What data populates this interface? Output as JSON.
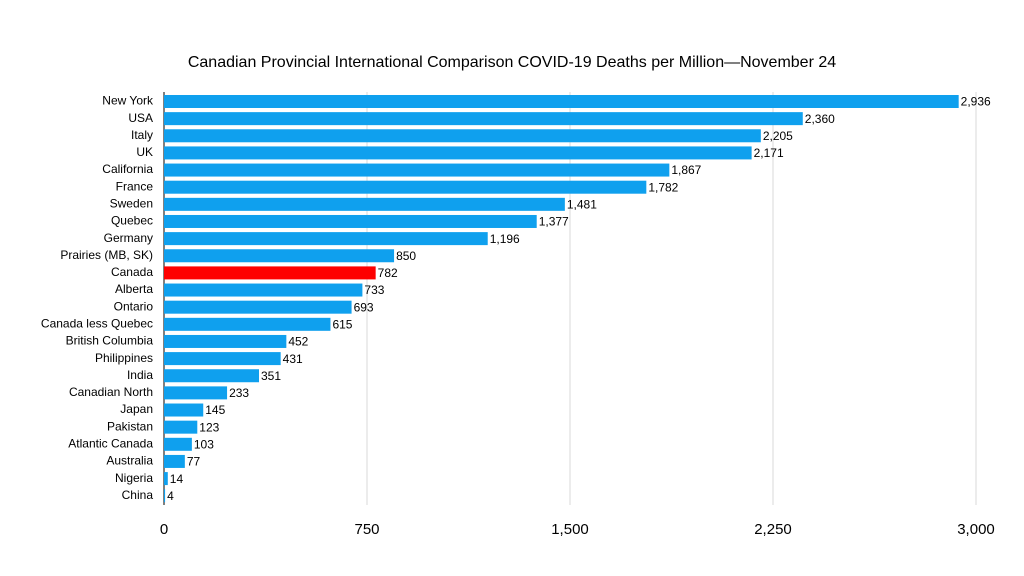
{
  "chart_data": {
    "type": "bar",
    "orientation": "horizontal",
    "title": "Canadian Provincial International Comparison COVID-19 Deaths per Million—November 24",
    "xlabel": "",
    "ylabel": "",
    "xlim": [
      0,
      3000
    ],
    "x_ticks": [
      0,
      750,
      1500,
      2250,
      3000
    ],
    "x_tick_labels": [
      "0",
      "750",
      "1,500",
      "2,250",
      "3,000"
    ],
    "grid": "vertical",
    "legend": "none",
    "categories": [
      "New York",
      "USA",
      "Italy",
      "UK",
      "California",
      "France",
      "Sweden",
      "Quebec",
      "Germany",
      "Prairies (MB, SK)",
      "Canada",
      "Alberta",
      "Ontario",
      "Canada less Quebec",
      "British Columbia",
      "Philippines",
      "India",
      "Canadian North",
      "Japan",
      "Pakistan",
      "Atlantic Canada",
      "Australia",
      "Nigeria",
      "China"
    ],
    "values": [
      2936,
      2360,
      2205,
      2171,
      1867,
      1782,
      1481,
      1377,
      1196,
      850,
      782,
      733,
      693,
      615,
      452,
      431,
      351,
      233,
      145,
      123,
      103,
      77,
      14,
      4
    ],
    "value_labels": [
      "2,936",
      "2,360",
      "2,205",
      "2,171",
      "1,867",
      "1,782",
      "1,481",
      "1,377",
      "1,196",
      "850",
      "782",
      "733",
      "693",
      "615",
      "452",
      "431",
      "351",
      "233",
      "145",
      "123",
      "103",
      "77",
      "14",
      "4"
    ],
    "highlight": "Canada",
    "colors": {
      "bar": "#0fa0ee",
      "highlight": "#fe0000",
      "grid": "#d9d9d9",
      "axis": "#000000"
    }
  }
}
